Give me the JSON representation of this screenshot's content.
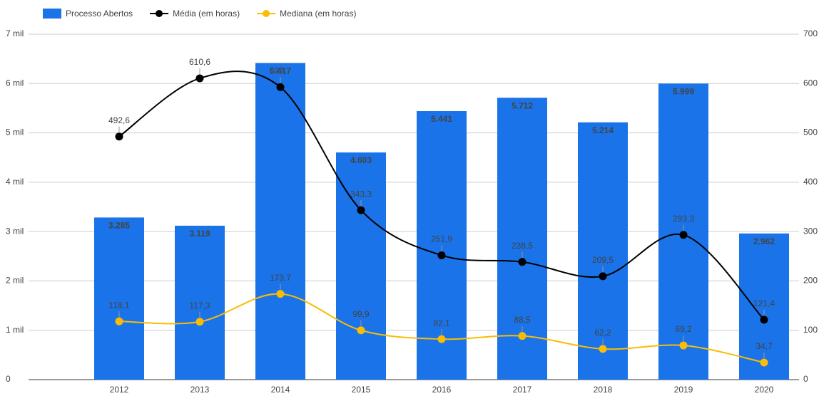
{
  "chart_data": {
    "type": "combo",
    "categories": [
      "2012",
      "2013",
      "2014",
      "2015",
      "2016",
      "2017",
      "2018",
      "2019",
      "2020"
    ],
    "series": [
      {
        "name": "Processo Abertos",
        "type": "bar",
        "color": "#1a73e8",
        "values": [
          3285,
          3119,
          6417,
          4603,
          5441,
          5712,
          5214,
          5999,
          2962
        ],
        "value_labels": [
          "3.285",
          "3.119",
          "6.417",
          "4.603",
          "5.441",
          "5.712",
          "5.214",
          "5.999",
          "2.962"
        ]
      },
      {
        "name": "Média (em horas)",
        "type": "line",
        "axis": "y2",
        "color": "#000000",
        "values": [
          492.6,
          610.6,
          592.7,
          343.3,
          251.9,
          238.5,
          209.5,
          293.3,
          121.4
        ],
        "value_labels": [
          "492,6",
          "610,6",
          "592,7",
          "343,3",
          "251,9",
          "238,5",
          "209,5",
          "293,3",
          "121,4"
        ]
      },
      {
        "name": "Mediana (em horas)",
        "type": "line",
        "axis": "y2",
        "color": "#fbbc04",
        "values": [
          118.1,
          117.3,
          173.7,
          99.9,
          82.1,
          88.5,
          62.2,
          69.2,
          34.7
        ],
        "value_labels": [
          "118,1",
          "117,3",
          "173,7",
          "99,9",
          "82,1",
          "88,5",
          "62,2",
          "69,2",
          "34,7"
        ]
      }
    ],
    "ylim": [
      0,
      7000
    ],
    "yticks": [
      0,
      {
        "value": 1000,
        "label": "1 mil"
      },
      {
        "value": 2000,
        "label": "2 mil"
      },
      {
        "value": 3000,
        "label": "3 mil"
      },
      {
        "value": 4000,
        "label": "4 mil"
      },
      {
        "value": 5000,
        "label": "5 mil"
      },
      {
        "value": 6000,
        "label": "6 mil"
      },
      {
        "value": 7000,
        "label": "7 mil"
      }
    ],
    "y2lim": [
      0,
      700
    ],
    "y2ticks": [
      0,
      100,
      200,
      300,
      400,
      500,
      600,
      700
    ],
    "grid": true,
    "legend": "top-left"
  }
}
